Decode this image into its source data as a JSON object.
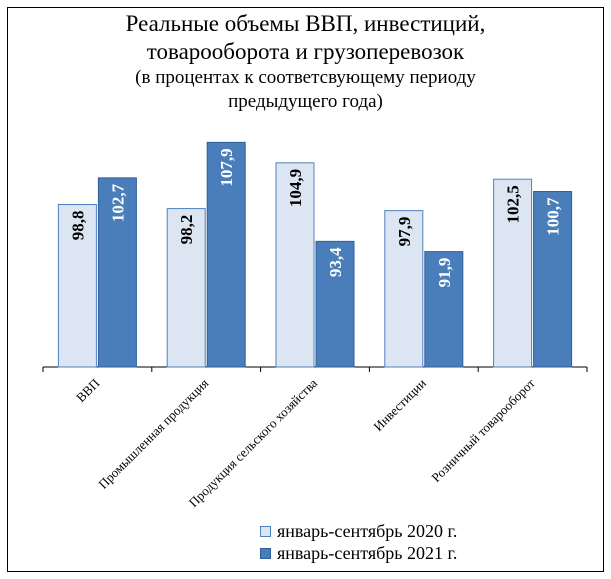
{
  "chart_data": {
    "type": "bar",
    "title_lines": [
      "Реальные объемы ВВП, инвестиций,",
      "товарооборота и грузоперевозок"
    ],
    "subtitle_lines": [
      "(в процентах к соответсвующему периоду",
      "предыдущего года)"
    ],
    "categories": [
      "ВВП",
      "Промышленная продукция",
      "Продукция сельского хозяйства",
      "Инвестиции",
      "Розничный товарооборот"
    ],
    "series": [
      {
        "name": "январь-сентябрь 2020 г.",
        "values": [
          98.8,
          98.2,
          104.9,
          97.9,
          102.5
        ],
        "labels": [
          "98,8",
          "98,2",
          "104,9",
          "97,9",
          "102,5"
        ],
        "color": "#dce6f2",
        "border": "#4f81bd",
        "label_color": "#000000"
      },
      {
        "name": "январь-сентябрь 2021 г.",
        "values": [
          102.7,
          107.9,
          93.4,
          91.9,
          100.7
        ],
        "labels": [
          "102,7",
          "107,9",
          "93,4",
          "91,9",
          "100,7"
        ],
        "color": "#4a7ebb",
        "border": "#2f5f9a",
        "label_color": "#ffffff"
      }
    ],
    "ylim": [
      75,
      110
    ],
    "grid": false,
    "legend_position": "bottom-right"
  }
}
